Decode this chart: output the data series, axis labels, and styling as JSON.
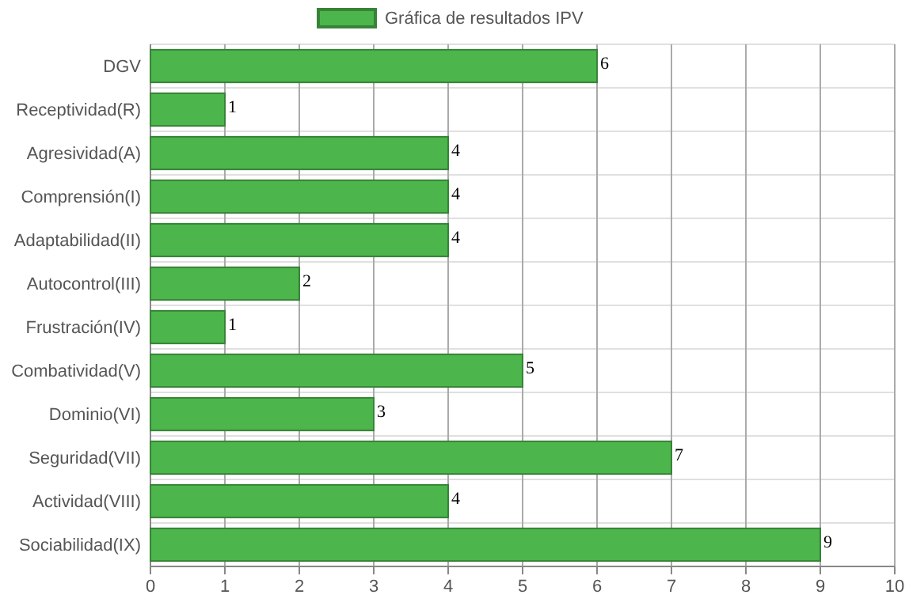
{
  "chart_data": {
    "type": "bar",
    "orientation": "horizontal",
    "categories": [
      "DGV",
      "Receptividad(R)",
      "Agresividad(A)",
      "Comprensión(I)",
      "Adaptabilidad(II)",
      "Autocontrol(III)",
      "Frustración(IV)",
      "Combatividad(V)",
      "Dominio(VI)",
      "Seguridad(VII)",
      "Actividad(VIII)",
      "Sociabilidad(IX)"
    ],
    "series": [
      {
        "name": "Gráfica de resultados IPV",
        "color": "#4cb54c",
        "values": [
          6,
          1,
          4,
          4,
          4,
          2,
          1,
          5,
          3,
          7,
          4,
          9
        ]
      }
    ],
    "xlim": [
      0,
      10
    ],
    "xticks": [
      0,
      1,
      2,
      3,
      4,
      5,
      6,
      7,
      8,
      9,
      10
    ],
    "grid": true,
    "legend": "top",
    "data_labels": true
  }
}
